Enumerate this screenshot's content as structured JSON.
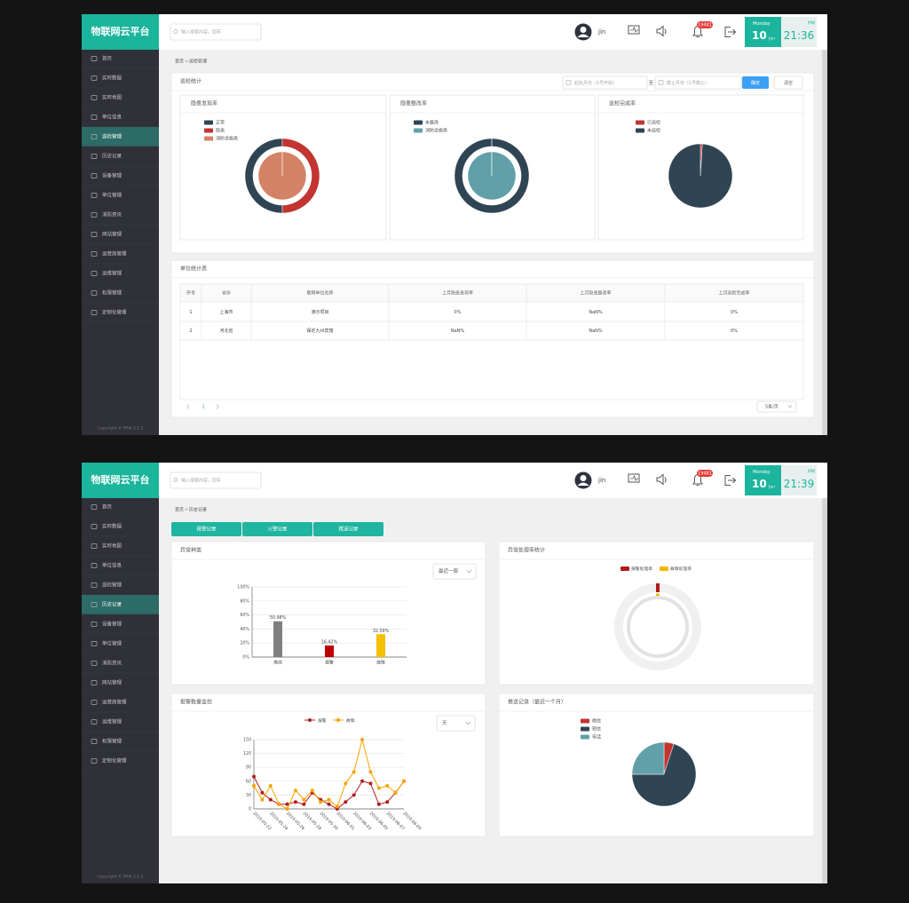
{
  "screens": [
    {
      "header": {
        "logo": "物联网云平台",
        "search": "输入搜索内容，回车",
        "user": "jin",
        "badge": "19481",
        "weekday": "Monday",
        "day": "10",
        "month": "Jun",
        "ampm": "PM",
        "time": "21:36"
      },
      "sidebar": {
        "items": [
          "首页",
          "实时数据",
          "实时地图",
          "单位信息",
          "巡检管理",
          "历史记录",
          "设备管理",
          "单位管理",
          "消防资讯",
          "网站管理",
          "运营商管理",
          "运维管理",
          "权限管理",
          "定制化管理"
        ],
        "active": 4,
        "copyright": "Copyright © MSK 2.2.5"
      },
      "breadcrumb": {
        "home": "首页",
        "separator": ">",
        "current": "巡检管理"
      },
      "inspection": {
        "title": "巡检统计",
        "start": "起始月份（1号开始）",
        "to": "至",
        "end": "截止月份（1号截止）",
        "confirm": "确定",
        "clear": "清空",
        "charts": [
          {
            "type": "donut",
            "title": "隐患发现率",
            "ring": [
              {
                "name": "正常",
                "color": "#2f4554",
                "value": 50
              },
              {
                "name": "隐患",
                "color": "#c23531",
                "value": 50
              }
            ],
            "inner": [
              {
                "name": "消防设施类",
                "color": "#d48265",
                "value": 100
              }
            ]
          },
          {
            "type": "donut",
            "title": "隐患整改率",
            "ring": [
              {
                "name": "未整改",
                "color": "#2f4554",
                "value": 100
              }
            ],
            "inner": [
              {
                "name": "消防设施类",
                "color": "#61a0a8",
                "value": 100
              }
            ]
          },
          {
            "type": "pie",
            "title": "巡检完成率",
            "series": [
              {
                "name": "已巡检",
                "color": "#c23531",
                "value": 1
              },
              {
                "name": "未巡检",
                "color": "#2f4554",
                "value": 99
              }
            ]
          }
        ]
      },
      "unit_table": {
        "title": "单位统计表",
        "columns": [
          "序号",
          "省份",
          "联网单位名称",
          "上月隐患发现率",
          "上月隐患整改率",
          "上月巡检完成率"
        ],
        "rows": [
          [
            "1",
            "上海市",
            "演示项目",
            "0%",
            "NaN%",
            "0%"
          ],
          [
            "2",
            "河北省",
            "保定九州宾馆",
            "NaN%",
            "NaN%",
            "0%"
          ]
        ],
        "page": "1",
        "page_size": "5条/页"
      }
    },
    {
      "header": {
        "logo": "物联网云平台",
        "search": "输入搜索内容，回车",
        "user": "jin",
        "badge": "19481",
        "weekday": "Monday",
        "day": "10",
        "month": "Jun",
        "ampm": "PM",
        "time": "21:39"
      },
      "sidebar": {
        "items": [
          "首页",
          "实时数据",
          "实时地图",
          "单位信息",
          "巡检管理",
          "历史记录",
          "设备管理",
          "单位管理",
          "消防资讯",
          "网站管理",
          "运营商管理",
          "运维管理",
          "权限管理",
          "定制化管理"
        ],
        "active": 5,
        "copyright": "Copyright © MSK 2.2.5"
      },
      "breadcrumb": {
        "home": "首页",
        "separator": ">",
        "current": "历史记录"
      },
      "tabs": [
        "报警记录",
        "火警记录",
        "推送记录"
      ],
      "cards": [
        {
          "type": "bar",
          "title": "异常种类",
          "dropdown": "最近一周",
          "categories": [
            "离线",
            "报警",
            "故障"
          ],
          "values": [
            50.98,
            16.42,
            32.59
          ],
          "value_labels": [
            "50.98%",
            "16.42%",
            "32.59%"
          ],
          "colors": [
            "#7f7f7f",
            "#c00000",
            "#f5c000"
          ],
          "ylim": [
            0,
            100
          ],
          "yticks": [
            {
              "value": 0,
              "label": "0%"
            },
            {
              "value": 20,
              "label": "20%"
            },
            {
              "value": 40,
              "label": "40%"
            },
            {
              "value": 60,
              "label": "60%"
            },
            {
              "value": 80,
              "label": "80%"
            },
            {
              "value": 100,
              "label": "100%"
            }
          ],
          "grid": true
        },
        {
          "type": "ring",
          "title": "异常处理率统计",
          "ylim": [
            0,
            100
          ],
          "series": [
            {
              "name": "报警处理率",
              "color": "#b31b1b",
              "value": 0
            },
            {
              "name": "故障处理率",
              "color": "#f5b800",
              "value": 0
            }
          ]
        },
        {
          "type": "line",
          "title": "报警数量监控",
          "dropdown": "天",
          "x": [
            "2019-05-22",
            null,
            "2019-05-24",
            null,
            "2019-05-26",
            null,
            "2019-05-28",
            null,
            "2019-05-30",
            null,
            "2019-06-01",
            null,
            "2019-06-03",
            null,
            "2019-06-05",
            null,
            "2019-06-07",
            null,
            "2019-06-09"
          ],
          "series": [
            {
              "name": "报警",
              "color": "#b31b1b",
              "values": [
                70,
                35,
                20,
                10,
                10,
                15,
                10,
                35,
                20,
                10,
                0,
                15,
                30,
                60,
                55,
                10,
                15,
                35,
                60
              ]
            },
            {
              "name": "故障",
              "color": "#f5a300",
              "values": [
                50,
                20,
                50,
                10,
                0,
                40,
                20,
                40,
                15,
                20,
                5,
                55,
                80,
                150,
                80,
                45,
                50,
                35,
                60
              ]
            }
          ],
          "ylim": [
            0,
            150
          ],
          "yticks": [
            0,
            30,
            60,
            90,
            120,
            150
          ],
          "grid": true
        },
        {
          "type": "pie",
          "title": "推送记录（最近一个月）",
          "series": [
            {
              "name": "微信",
              "color": "#c23531",
              "value": 5
            },
            {
              "name": "短信",
              "color": "#2f4554",
              "value": 70
            },
            {
              "name": "电话",
              "color": "#61a0a8",
              "value": 25
            }
          ]
        }
      ]
    }
  ]
}
